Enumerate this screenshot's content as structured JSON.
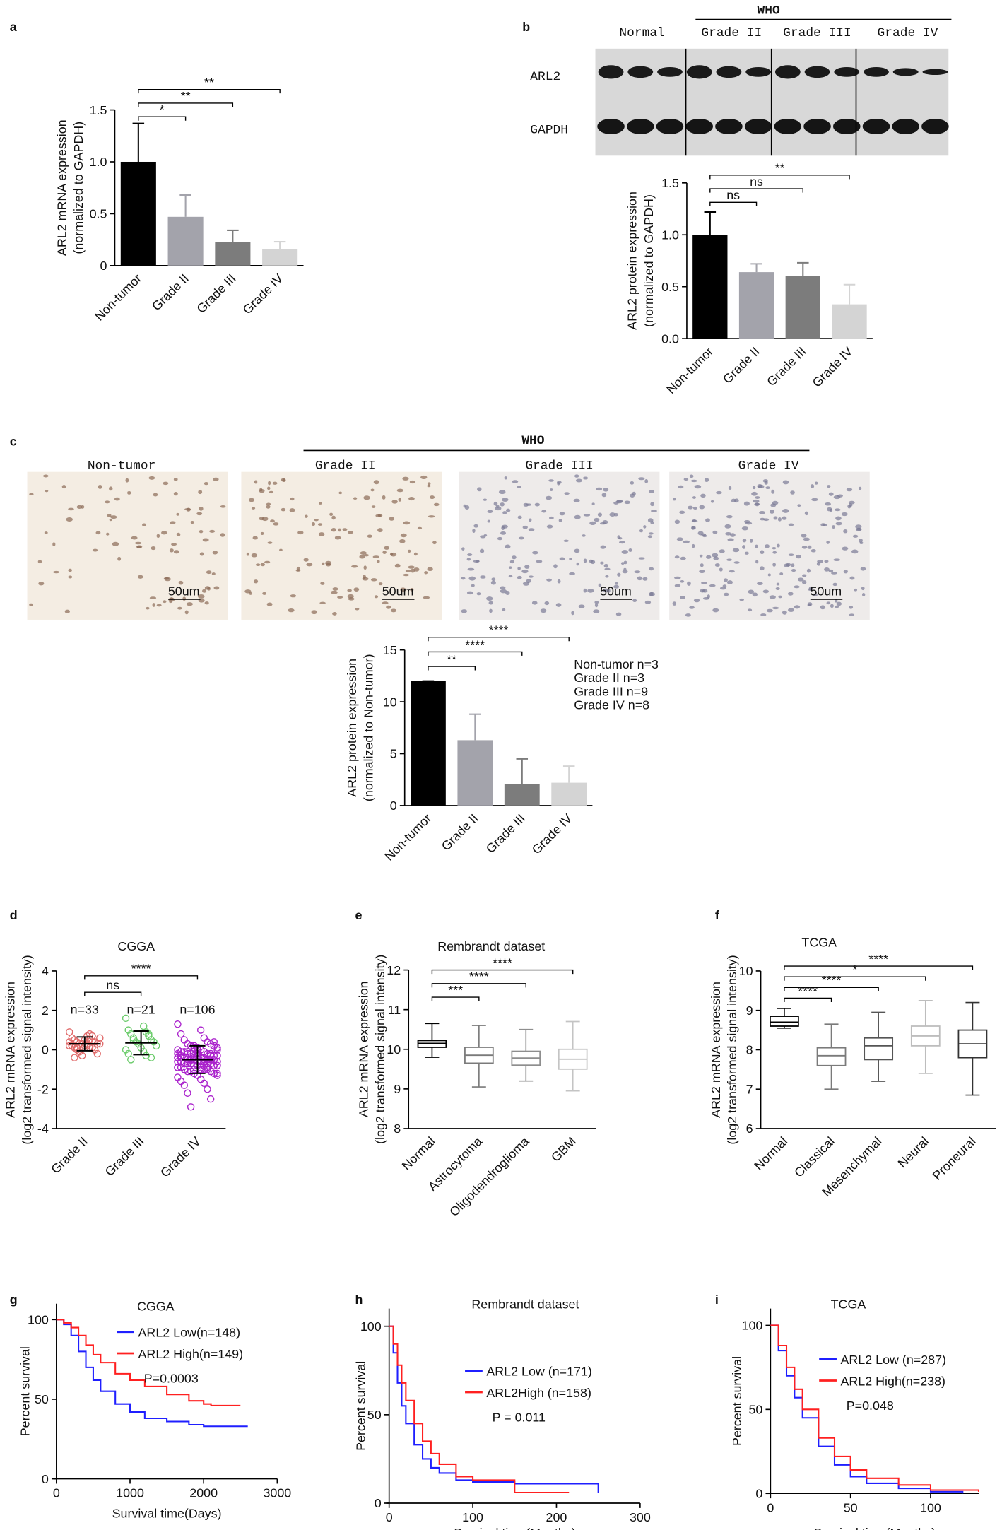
{
  "chart_data": [
    {
      "panel": "a",
      "type": "bar",
      "ylabel": [
        "ARL2 mRNA expression",
        "(normalized to GAPDH)"
      ],
      "categories": [
        "Non-tumor",
        "Grade II",
        "Grade III",
        "Grade IV"
      ],
      "values": [
        1.0,
        0.47,
        0.23,
        0.16
      ],
      "errors": [
        0.37,
        0.21,
        0.11,
        0.07
      ],
      "colors": [
        "#000000",
        "#a3a3ab",
        "#7c7c7c",
        "#d4d4d4"
      ],
      "ylim": [
        0,
        1.5
      ],
      "yticks": [
        0,
        0.5,
        {
          "value": 1,
          "label": "1.0"
        },
        1.5
      ],
      "significance": [
        {
          "from": "Non-tumor",
          "to": "Grade IV",
          "label": "**"
        },
        {
          "from": "Non-tumor",
          "to": "Grade III",
          "label": "**"
        },
        {
          "from": "Non-tumor",
          "to": "Grade II",
          "label": "*"
        }
      ]
    },
    {
      "panel": "b",
      "type": "bar",
      "ylabel": [
        "ARL2 protein expression",
        "(normalized to GAPDH)"
      ],
      "categories": [
        "Non-tumor",
        "Grade II",
        "Grade III",
        "Grade IV"
      ],
      "values": [
        1.0,
        0.64,
        0.6,
        0.33
      ],
      "errors": [
        0.22,
        0.08,
        0.13,
        0.19
      ],
      "colors": [
        "#000000",
        "#a3a3ab",
        "#7c7c7c",
        "#d4d4d4"
      ],
      "ylim": [
        0,
        1.5
      ],
      "yticks": [
        {
          "value": 0,
          "label": "0.0"
        },
        0.5,
        {
          "value": 1,
          "label": "1.0"
        },
        1.5
      ],
      "significance": [
        {
          "from": "Non-tumor",
          "to": "Grade IV",
          "label": "**"
        },
        {
          "from": "Non-tumor",
          "to": "Grade III",
          "label": "ns"
        },
        {
          "from": "Non-tumor",
          "to": "Grade II",
          "label": "ns"
        }
      ]
    },
    {
      "panel": "c",
      "type": "bar",
      "ylabel": [
        "ARL2 protein expression",
        "(normalized to Non-tumor)"
      ],
      "categories": [
        "Non-tumor",
        "Grade II",
        "Grade III",
        "Grade IV"
      ],
      "values": [
        12,
        6.3,
        2.1,
        2.2
      ],
      "errors": [
        0,
        2.5,
        2.4,
        1.6
      ],
      "colors": [
        "#000000",
        "#a3a3ab",
        "#7c7c7c",
        "#d4d4d4"
      ],
      "ylim": [
        0,
        15
      ],
      "yticks": [
        0,
        5,
        10,
        15
      ],
      "significance": [
        {
          "from": "Non-tumor",
          "to": "Grade IV",
          "label": "****"
        },
        {
          "from": "Non-tumor",
          "to": "Grade III",
          "label": "****"
        },
        {
          "from": "Non-tumor",
          "to": "Grade II",
          "label": "**"
        }
      ],
      "notes": [
        "Non-tumor n=3",
        "Grade II n=3",
        "Grade III n=9",
        "Grade IV n=8"
      ]
    },
    {
      "panel": "d",
      "type": "dotplot",
      "title": "CGGA",
      "ylabel": [
        "ARL2 mRNA expression",
        "(log2 transformed signal intensity)"
      ],
      "categories": [
        "Grade II",
        "Grade III",
        "Grade IV"
      ],
      "colors": [
        "#e06a6a",
        "#6ccc6c",
        "#aa22cc"
      ],
      "n_labels": [
        "n=33",
        "n=21",
        "n=106"
      ],
      "ylim": [
        -4,
        4
      ],
      "yticks": [
        -4,
        -2,
        0,
        2,
        4
      ],
      "points": [
        [
          0.9,
          0.7,
          0.6,
          0.5,
          0.5,
          0.4,
          0.4,
          0.4,
          0.3,
          0.3,
          0.3,
          0.3,
          0.2,
          0.2,
          0.2,
          0.2,
          0.1,
          0.1,
          0.1,
          0.0,
          0.0,
          -0.1,
          -0.2,
          -0.3,
          0.6,
          0.5,
          0.4,
          0.3,
          0.2,
          0.8,
          -0.4,
          0.7,
          0.1
        ],
        [
          1.6,
          1.2,
          1.0,
          0.9,
          0.8,
          0.7,
          0.6,
          0.5,
          0.4,
          0.4,
          0.3,
          0.2,
          0.1,
          0.0,
          -0.1,
          -0.2,
          -0.3,
          -0.5,
          0.8,
          0.5,
          -0.4
        ],
        [
          1.3,
          1.0,
          0.8,
          0.6,
          0.5,
          0.4,
          0.3,
          0.3,
          0.2,
          0.2,
          0.1,
          0.1,
          0.0,
          0.0,
          0.0,
          -0.1,
          -0.1,
          -0.1,
          -0.2,
          -0.2,
          -0.2,
          -0.2,
          -0.3,
          -0.3,
          -0.3,
          -0.3,
          -0.4,
          -0.4,
          -0.4,
          -0.4,
          -0.4,
          -0.5,
          -0.5,
          -0.5,
          -0.5,
          -0.5,
          -0.5,
          -0.6,
          -0.6,
          -0.6,
          -0.6,
          -0.6,
          -0.6,
          -0.7,
          -0.7,
          -0.7,
          -0.7,
          -0.7,
          -0.8,
          -0.8,
          -0.8,
          -0.8,
          -0.9,
          -0.9,
          -0.9,
          -1.0,
          -1.0,
          -1.0,
          -1.1,
          -1.1,
          -1.1,
          -1.2,
          -1.2,
          -1.3,
          -1.3,
          -1.4,
          -1.5,
          -1.6,
          -1.7,
          -1.8,
          -2.0,
          -2.2,
          -2.5,
          -2.9,
          0.4,
          0.2,
          0.0,
          -0.2,
          -0.4,
          -0.6,
          -0.3,
          -0.5,
          -0.7,
          -0.9,
          -0.1,
          -0.3,
          -0.5,
          -0.8,
          -1.0,
          -1.2,
          0.1,
          -0.2,
          -0.4,
          -0.6,
          -0.8,
          -0.4,
          -0.5,
          -0.6,
          -0.3,
          -0.7,
          -0.5,
          -0.4,
          -0.6,
          -0.2,
          -0.9,
          -1.0
        ]
      ],
      "means": [
        0.3,
        0.35,
        -0.5
      ],
      "sds": [
        0.35,
        0.6,
        0.7
      ],
      "significance": [
        {
          "from": "Grade II",
          "to": "Grade IV",
          "label": "****"
        },
        {
          "from": "Grade II",
          "to": "Grade III",
          "label": "ns"
        }
      ]
    },
    {
      "panel": "e",
      "type": "box",
      "title": "Rembrandt dataset",
      "ylabel": [
        "ARL2 mRNA expression",
        "(log2 transformed signal intensity)"
      ],
      "categories": [
        "Normal",
        "Astrocytoma",
        "Oligodendroglioma",
        "GBM"
      ],
      "colors": [
        "#000000",
        "#7a7a7a",
        "#8e8e8e",
        "#c4c4c4"
      ],
      "ylim": [
        8,
        12
      ],
      "yticks": [
        8,
        9,
        10,
        11,
        12
      ],
      "boxes": [
        {
          "min": 9.8,
          "q1": 10.05,
          "median": 10.15,
          "q3": 10.22,
          "max": 10.65
        },
        {
          "min": 9.05,
          "q1": 9.65,
          "median": 9.85,
          "q3": 10.05,
          "max": 10.6
        },
        {
          "min": 9.2,
          "q1": 9.6,
          "median": 9.78,
          "q3": 9.95,
          "max": 10.5
        },
        {
          "min": 8.95,
          "q1": 9.5,
          "median": 9.75,
          "q3": 10.0,
          "max": 10.7
        }
      ],
      "significance": [
        {
          "from": "Normal",
          "to": "GBM",
          "label": "****"
        },
        {
          "from": "Normal",
          "to": "Oligodendroglioma",
          "label": "****"
        },
        {
          "from": "Normal",
          "to": "Astrocytoma",
          "label": "***"
        }
      ]
    },
    {
      "panel": "f",
      "type": "box",
      "title": "TCGA",
      "ylabel": [
        "ARL2 mRNA expression",
        "(log2 transformed signal intensity)"
      ],
      "categories": [
        "Normal",
        "Classical",
        "Mesenchymal",
        "Neural",
        "Proneural"
      ],
      "colors": [
        "#000000",
        "#7a7a7a",
        "#555555",
        "#bdbdbd",
        "#333333"
      ],
      "ylim": [
        6,
        10
      ],
      "yticks": [
        6,
        7,
        8,
        9,
        10
      ],
      "boxes": [
        {
          "min": 8.55,
          "q1": 8.6,
          "median": 8.7,
          "q3": 8.85,
          "max": 9.05
        },
        {
          "min": 7.0,
          "q1": 7.6,
          "median": 7.85,
          "q3": 8.05,
          "max": 8.65
        },
        {
          "min": 7.2,
          "q1": 7.75,
          "median": 8.1,
          "q3": 8.3,
          "max": 8.95
        },
        {
          "min": 7.4,
          "q1": 8.1,
          "median": 8.35,
          "q3": 8.6,
          "max": 9.25
        },
        {
          "min": 6.85,
          "q1": 7.8,
          "median": 8.15,
          "q3": 8.5,
          "max": 9.2
        }
      ],
      "significance": [
        {
          "from": "Normal",
          "to": "Proneural",
          "label": "****"
        },
        {
          "from": "Normal",
          "to": "Neural",
          "label": "*"
        },
        {
          "from": "Normal",
          "to": "Mesenchymal",
          "label": "****"
        },
        {
          "from": "Normal",
          "to": "Classical",
          "label": "****"
        }
      ]
    },
    {
      "panel": "g",
      "type": "survival",
      "title": "CGGA",
      "xlabel": "Survival time(Days)",
      "ylabel": "Percent survival",
      "annotation": "P=0.0003",
      "xlim": [
        0,
        3000
      ],
      "xticks": [
        0,
        1000,
        2000,
        3000
      ],
      "ylim": [
        0,
        110
      ],
      "yticks": [
        0,
        50,
        100
      ],
      "series": [
        {
          "name": "ARL2 Low(n=148)",
          "color": "#1f1fff",
          "x": [
            0,
            100,
            200,
            300,
            400,
            500,
            600,
            800,
            1000,
            1200,
            1500,
            1800,
            2000,
            2300,
            2600
          ],
          "values": [
            100,
            97,
            90,
            80,
            70,
            62,
            55,
            47,
            42,
            38,
            36,
            34,
            33,
            33,
            33
          ]
        },
        {
          "name": "ARL2 High(n=149)",
          "color": "#ff2020",
          "x": [
            0,
            100,
            200,
            300,
            400,
            500,
            600,
            800,
            1000,
            1200,
            1500,
            1800,
            2000,
            2100,
            2500
          ],
          "values": [
            100,
            98,
            95,
            90,
            84,
            78,
            73,
            66,
            62,
            58,
            53,
            49,
            47,
            46,
            46
          ]
        }
      ]
    },
    {
      "panel": "h",
      "type": "survival",
      "title": "Rembrandt dataset",
      "xlabel": "Survival time(Months)",
      "ylabel": "Percent survival",
      "annotation": "P = 0.011",
      "xlim": [
        0,
        300
      ],
      "xticks": [
        0,
        100,
        200,
        300
      ],
      "ylim": [
        0,
        110
      ],
      "yticks": [
        0,
        50,
        100
      ],
      "series": [
        {
          "name": "ARL2 Low (n=171)",
          "color": "#1f1fff",
          "x": [
            0,
            5,
            10,
            15,
            20,
            30,
            40,
            50,
            60,
            80,
            100,
            150,
            200,
            230,
            250
          ],
          "values": [
            100,
            85,
            68,
            55,
            45,
            33,
            25,
            20,
            17,
            13,
            12,
            11,
            11,
            11,
            6
          ]
        },
        {
          "name": "ARL2High (n=158)",
          "color": "#ff2020",
          "x": [
            0,
            5,
            10,
            15,
            20,
            30,
            40,
            50,
            60,
            80,
            100,
            150,
            200,
            215
          ],
          "values": [
            100,
            90,
            78,
            68,
            58,
            45,
            35,
            28,
            22,
            15,
            13,
            6,
            6,
            6
          ]
        }
      ]
    },
    {
      "panel": "i",
      "type": "survival",
      "title": "TCGA",
      "xlabel": "Survival time(Months)",
      "ylabel": "Percent survival",
      "annotation": "P=0.048",
      "xlim": [
        0,
        130
      ],
      "xticks": [
        0,
        50,
        100
      ],
      "ylim": [
        0,
        110
      ],
      "yticks": [
        0,
        50,
        100
      ],
      "series": [
        {
          "name": "ARL2 Low (n=287)",
          "color": "#1f1fff",
          "x": [
            0,
            5,
            10,
            15,
            20,
            30,
            40,
            50,
            60,
            80,
            100,
            120
          ],
          "values": [
            100,
            85,
            70,
            57,
            45,
            28,
            17,
            10,
            6,
            3,
            1,
            0
          ]
        },
        {
          "name": "ARL2 High(n=238)",
          "color": "#ff2020",
          "x": [
            0,
            5,
            10,
            15,
            20,
            30,
            40,
            50,
            60,
            80,
            100,
            130
          ],
          "values": [
            100,
            88,
            75,
            62,
            50,
            33,
            22,
            14,
            9,
            5,
            2,
            1
          ]
        }
      ]
    }
  ],
  "blot": {
    "group_label": "WHO",
    "lanes": [
      "Normal",
      "Grade II",
      "Grade III",
      "Grade IV"
    ],
    "rows": [
      "ARL2",
      "GAPDH"
    ]
  },
  "histology": {
    "group_label": "WHO",
    "labels": [
      "Non-tumor",
      "Grade II",
      "Grade III",
      "Grade IV"
    ],
    "scale_bars": [
      "50um",
      "50um",
      "50um",
      "50um"
    ]
  }
}
